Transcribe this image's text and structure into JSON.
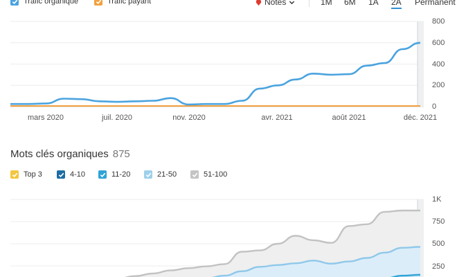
{
  "traffic_legend": {
    "organic": {
      "label": "Trafic organique",
      "color": "#4aa3df"
    },
    "paid": {
      "label": "Trafic payant",
      "color": "#f2a03d"
    }
  },
  "toolbar": {
    "notes_label": "Notes",
    "ranges": [
      {
        "label": "1M",
        "active": false
      },
      {
        "label": "6M",
        "active": false
      },
      {
        "label": "1A",
        "active": false
      },
      {
        "label": "2A",
        "active": true
      },
      {
        "label": "Permanent",
        "active": false
      }
    ]
  },
  "keywords_section": {
    "title": "Mots clés organiques",
    "count": "875"
  },
  "keywords_legend": [
    {
      "label": "Top 3",
      "color": "#f3c63f"
    },
    {
      "label": "4-10",
      "color": "#1c6ea4"
    },
    {
      "label": "11-20",
      "color": "#2fa3d6"
    },
    {
      "label": "21-50",
      "color": "#9fd0ec"
    },
    {
      "label": "51-100",
      "color": "#c4c4c4"
    }
  ],
  "chart_data": [
    {
      "type": "line",
      "xlabel": "",
      "ylabel": "",
      "x_tick_labels": [
        "mars 2020",
        "juil. 2020",
        "nov. 2020",
        "avr. 2021",
        "août 2021",
        "déc. 2021"
      ],
      "y_tick_labels": [
        "0",
        "200",
        "400",
        "600",
        "800"
      ],
      "ylim": [
        0,
        800
      ],
      "grid": true,
      "series": [
        {
          "name": "Trafic organique",
          "color": "#4aa3df",
          "x": [
            "2020-01",
            "2020-02",
            "2020-03",
            "2020-04",
            "2020-05",
            "2020-06",
            "2020-07",
            "2020-08",
            "2020-09",
            "2020-10",
            "2020-11",
            "2020-12",
            "2021-01",
            "2021-02",
            "2021-03",
            "2021-04",
            "2021-05",
            "2021-06",
            "2021-07",
            "2021-08",
            "2021-09",
            "2021-10",
            "2021-11",
            "2021-12"
          ],
          "values": [
            25,
            25,
            30,
            75,
            70,
            50,
            45,
            50,
            55,
            80,
            20,
            25,
            25,
            55,
            170,
            200,
            255,
            310,
            300,
            305,
            385,
            410,
            540,
            600
          ]
        },
        {
          "name": "Trafic payant",
          "color": "#f2a03d",
          "x": [
            "2020-01",
            "2021-12"
          ],
          "values": [
            0,
            0
          ]
        }
      ]
    },
    {
      "type": "area",
      "xlabel": "",
      "ylabel": "",
      "y_tick_labels": [
        "250",
        "500",
        "750",
        "1K"
      ],
      "ylim": [
        0,
        1000
      ],
      "grid": true,
      "series": [
        {
          "name": "51-100",
          "color": "#c4c4c4",
          "x": [
            "2020-01",
            "2020-02",
            "2020-03",
            "2020-04",
            "2020-05",
            "2020-06",
            "2020-07",
            "2020-08",
            "2020-09",
            "2020-10",
            "2020-11",
            "2020-12",
            "2021-01",
            "2021-02",
            "2021-03",
            "2021-04",
            "2021-05",
            "2021-06",
            "2021-07",
            "2021-08",
            "2021-09",
            "2021-10",
            "2021-11",
            "2021-12"
          ],
          "values": [
            60,
            65,
            70,
            75,
            80,
            95,
            105,
            135,
            165,
            200,
            225,
            245,
            270,
            410,
            425,
            500,
            590,
            540,
            510,
            700,
            720,
            860,
            875,
            875
          ]
        },
        {
          "name": "21-50",
          "color": "#9fd0ec",
          "x": [
            "2020-01",
            "2020-02",
            "2020-03",
            "2020-04",
            "2020-05",
            "2020-06",
            "2020-07",
            "2020-08",
            "2020-09",
            "2020-10",
            "2020-11",
            "2020-12",
            "2021-01",
            "2021-02",
            "2021-03",
            "2021-04",
            "2021-05",
            "2021-06",
            "2021-07",
            "2021-08",
            "2021-09",
            "2021-10",
            "2021-11",
            "2021-12"
          ],
          "values": [
            20,
            22,
            25,
            28,
            30,
            35,
            40,
            50,
            60,
            75,
            90,
            110,
            140,
            190,
            240,
            260,
            280,
            310,
            275,
            300,
            340,
            400,
            455,
            465
          ]
        },
        {
          "name": "11-20",
          "color": "#2fa3d6",
          "x": [
            "2020-01",
            "2020-02",
            "2020-03",
            "2020-04",
            "2020-05",
            "2020-06",
            "2020-07",
            "2020-08",
            "2020-09",
            "2020-10",
            "2020-11",
            "2020-12",
            "2021-01",
            "2021-02",
            "2021-03",
            "2021-04",
            "2021-05",
            "2021-06",
            "2021-07",
            "2021-08",
            "2021-09",
            "2021-10",
            "2021-11",
            "2021-12"
          ],
          "values": [
            5,
            5,
            5,
            5,
            5,
            5,
            5,
            8,
            10,
            12,
            15,
            18,
            20,
            25,
            30,
            35,
            40,
            45,
            50,
            60,
            80,
            110,
            140,
            150
          ]
        }
      ]
    }
  ]
}
